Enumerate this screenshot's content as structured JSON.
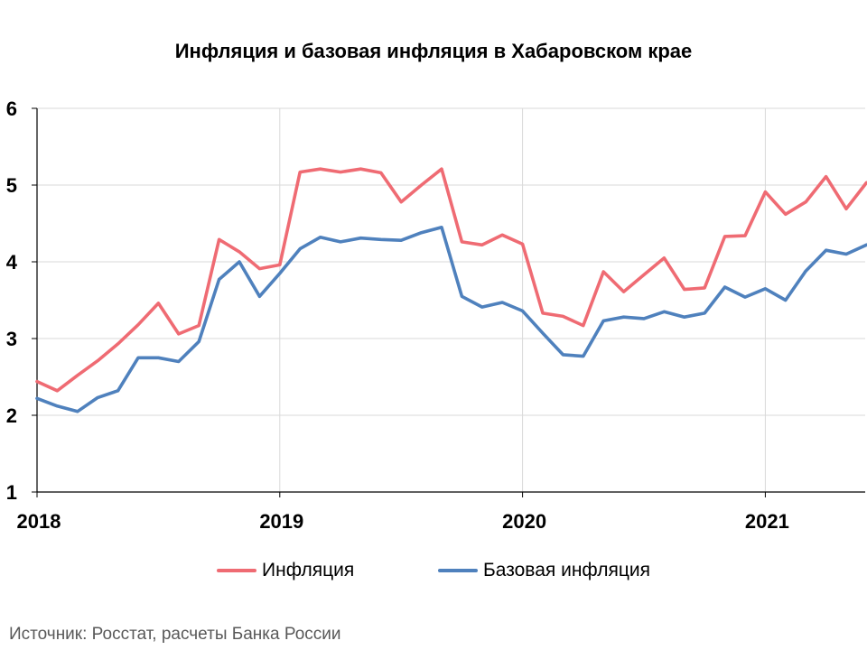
{
  "title": "Инфляция и базовая инфляция в Хабаровском крае",
  "source": "Источник: Росстат, расчеты Банка России",
  "colors": {
    "inflation": "#EF6B73",
    "core": "#4F81BD",
    "grid": "#d9d9d9",
    "axis": "#000000"
  },
  "chart_data": {
    "type": "line",
    "title": "Инфляция и базовая инфляция в Хабаровском крае",
    "xlabel": "",
    "ylabel": "",
    "ylim": [
      1,
      6
    ],
    "yticks": [
      1,
      2,
      3,
      4,
      5,
      6
    ],
    "x_tick_labels": [
      "2018",
      "2019",
      "2020",
      "2021"
    ],
    "grid": true,
    "legend_position": "bottom",
    "x": [
      "2018-01",
      "2018-02",
      "2018-03",
      "2018-04",
      "2018-05",
      "2018-06",
      "2018-07",
      "2018-08",
      "2018-09",
      "2018-10",
      "2018-11",
      "2018-12",
      "2019-01",
      "2019-02",
      "2019-03",
      "2019-04",
      "2019-05",
      "2019-06",
      "2019-07",
      "2019-08",
      "2019-09",
      "2019-10",
      "2019-11",
      "2019-12",
      "2020-01",
      "2020-02",
      "2020-03",
      "2020-04",
      "2020-05",
      "2020-06",
      "2020-07",
      "2020-08",
      "2020-09",
      "2020-10",
      "2020-11",
      "2020-12",
      "2021-01",
      "2021-02",
      "2021-03",
      "2021-04",
      "2021-05",
      "2021-06"
    ],
    "series": [
      {
        "name": "Инфляция",
        "values": [
          2.44,
          2.32,
          2.52,
          2.71,
          2.93,
          3.18,
          3.46,
          3.06,
          3.17,
          4.29,
          4.13,
          3.91,
          3.96,
          5.17,
          5.21,
          5.17,
          5.21,
          5.16,
          4.78,
          5.0,
          5.21,
          4.26,
          4.22,
          4.35,
          4.23,
          3.33,
          3.29,
          3.17,
          3.87,
          3.61,
          3.83,
          4.05,
          3.64,
          3.66,
          4.33,
          4.34,
          4.91,
          4.62,
          4.78,
          5.11,
          4.69,
          5.03
        ]
      },
      {
        "name": "Базовая инфляция",
        "values": [
          2.22,
          2.12,
          2.05,
          2.23,
          2.32,
          2.75,
          2.75,
          2.7,
          2.96,
          3.77,
          4.0,
          3.55,
          3.85,
          4.17,
          4.32,
          4.26,
          4.31,
          4.29,
          4.28,
          4.38,
          4.45,
          3.55,
          3.41,
          3.47,
          3.36,
          3.07,
          2.79,
          2.77,
          3.23,
          3.28,
          3.26,
          3.35,
          3.28,
          3.33,
          3.67,
          3.54,
          3.65,
          3.5,
          3.88,
          4.15,
          4.1,
          4.22
        ]
      }
    ]
  }
}
